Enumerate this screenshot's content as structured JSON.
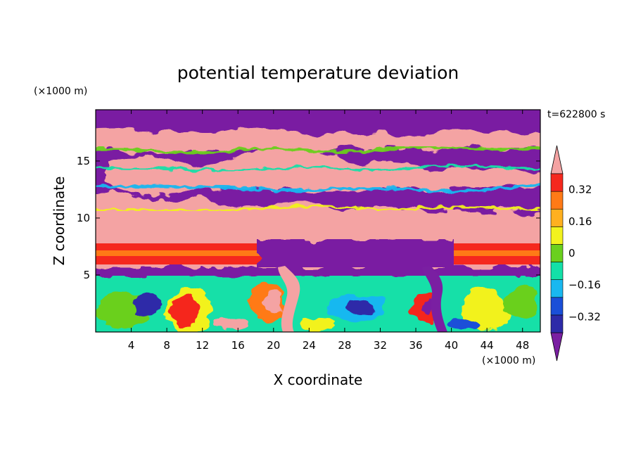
{
  "chart_data": {
    "type": "heatmap",
    "title": "potential temperature deviation",
    "xlabel": "X coordinate",
    "ylabel": "Z coordinate",
    "x_unit": "(×1000 m)",
    "y_unit": "(×1000 m)",
    "time_label": "t=622800 s",
    "xlim": [
      0,
      50
    ],
    "ylim": [
      0,
      19.5
    ],
    "x_ticks": [
      4,
      8,
      12,
      16,
      20,
      24,
      28,
      32,
      36,
      40,
      44,
      48
    ],
    "x_tick_labels": [
      "4",
      "8",
      "12",
      "16",
      "20",
      "24",
      "28",
      "32",
      "36",
      "40",
      "44",
      "48"
    ],
    "y_ticks": [
      5,
      10,
      15
    ],
    "y_tick_labels": [
      "5",
      "10",
      "15"
    ],
    "colorbar": {
      "levels": [
        -0.4,
        -0.32,
        -0.24,
        -0.16,
        -0.08,
        0,
        0.08,
        0.16,
        0.24,
        0.32,
        0.4
      ],
      "tick_values": [
        0.32,
        0.16,
        0,
        -0.16,
        -0.32
      ],
      "tick_labels": [
        "0.32",
        "0.16",
        "0",
        "−0.16",
        "−0.32"
      ],
      "colors": [
        "#7a1fa2",
        "#2d2aa8",
        "#1a4fd8",
        "#19b8f0",
        "#13e0a8",
        "#6ad01e",
        "#f2f21e",
        "#ffb020",
        "#ff7a16",
        "#f5281e",
        "#f4a3a3"
      ],
      "extend": "both"
    },
    "layers": [
      {
        "z_range": [
          10,
          19.5
        ],
        "description_colors": [
          "#f4a3a3",
          "#7a1fa2"
        ]
      },
      {
        "z_range": [
          8,
          10
        ],
        "description_colors": [
          "#f4a3a3",
          "#f5281e"
        ]
      },
      {
        "z_range": [
          5.8,
          7.8
        ],
        "description_colors": [
          "#f5281e",
          "#ff7a16"
        ]
      },
      {
        "z_range": [
          0,
          5
        ],
        "description_colors": [
          "#13e0a8",
          "#6ad01e",
          "#f2f21e",
          "#2d2aa8"
        ]
      }
    ]
  }
}
